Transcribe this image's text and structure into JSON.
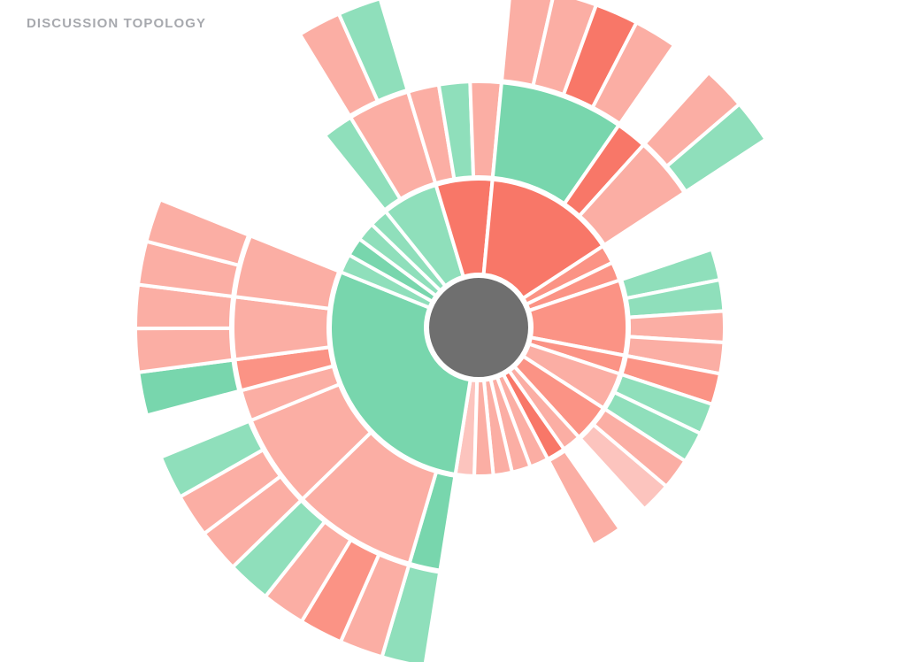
{
  "title": "DISCUSSION TOPOLOGY",
  "colors": {
    "root": "#6f6f6f",
    "positive_dark": "#78d6ad",
    "positive": "#8fdfbb",
    "negative_dark": "#f87768",
    "negative": "#fb9385",
    "negative_light": "#fbaea4",
    "negative_pale": "#fcc4be",
    "separator": "#ffffff"
  },
  "chart_data": {
    "type": "sunburst",
    "root": {
      "name": "",
      "children": [
        {
          "sentiment": "negative_pale",
          "children": []
        },
        {
          "sentiment": "positive_dark",
          "children": [
            {
              "sentiment": "positive_dark",
              "children": [
                {
                  "sentiment": "positive",
                  "children": []
                }
              ]
            },
            {
              "sentiment": "negative_light",
              "children": [
                {
                  "sentiment": "negative_light",
                  "children": []
                },
                {
                  "sentiment": "negative",
                  "children": []
                },
                {
                  "sentiment": "negative_light",
                  "children": []
                },
                {
                  "sentiment": "positive",
                  "children": []
                }
              ]
            },
            {
              "sentiment": "negative_light",
              "children": [
                {
                  "sentiment": "negative_light",
                  "children": []
                },
                {
                  "sentiment": "negative_light",
                  "children": []
                },
                {
                  "sentiment": "positive",
                  "children": []
                }
              ]
            },
            {
              "sentiment": "negative_light",
              "children": []
            },
            {
              "sentiment": "negative",
              "children": [
                {
                  "sentiment": "positive_dark",
                  "children": []
                }
              ]
            },
            {
              "sentiment": "negative_light",
              "children": [
                {
                  "sentiment": "negative_light",
                  "children": []
                },
                {
                  "sentiment": "negative_light",
                  "children": []
                }
              ]
            },
            {
              "sentiment": "negative_light",
              "children": [
                {
                  "sentiment": "negative_light",
                  "children": []
                },
                {
                  "sentiment": "negative_light",
                  "children": []
                }
              ]
            }
          ]
        },
        {
          "sentiment": "positive",
          "children": []
        },
        {
          "sentiment": "positive_dark",
          "children": []
        },
        {
          "sentiment": "positive",
          "children": []
        },
        {
          "sentiment": "positive",
          "children": []
        },
        {
          "sentiment": "positive",
          "children": [
            {
              "sentiment": "positive",
              "children": []
            },
            {
              "sentiment": "negative_light",
              "children": [
                {
                  "sentiment": "negative_light",
                  "children": []
                },
                {
                  "sentiment": "positive",
                  "children": []
                }
              ]
            }
          ]
        },
        {
          "sentiment": "negative_dark",
          "children": [
            {
              "sentiment": "negative_light",
              "children": []
            },
            {
              "sentiment": "positive",
              "children": []
            },
            {
              "sentiment": "negative_light",
              "children": []
            }
          ]
        },
        {
          "sentiment": "negative_dark",
          "children": [
            {
              "sentiment": "positive_dark",
              "children": [
                {
                  "sentiment": "negative_light",
                  "children": []
                },
                {
                  "sentiment": "negative_light",
                  "children": []
                },
                {
                  "sentiment": "negative_dark",
                  "children": []
                },
                {
                  "sentiment": "negative_light",
                  "children": []
                }
              ]
            },
            {
              "sentiment": "negative_dark",
              "children": []
            },
            {
              "sentiment": "negative_light",
              "children": [
                {
                  "sentiment": "negative_light",
                  "children": []
                },
                {
                  "sentiment": "positive",
                  "children": []
                }
              ]
            }
          ]
        },
        {
          "sentiment": "negative",
          "children": []
        },
        {
          "sentiment": "negative",
          "children": []
        },
        {
          "sentiment": "negative",
          "children": [
            {
              "sentiment": "positive",
              "children": []
            },
            {
              "sentiment": "positive",
              "children": []
            },
            {
              "sentiment": "negative_light",
              "children": []
            },
            {
              "sentiment": "negative_light",
              "children": []
            }
          ]
        },
        {
          "sentiment": "negative",
          "children": [
            {
              "sentiment": "negative",
              "children": []
            }
          ]
        },
        {
          "sentiment": "negative_light",
          "children": [
            {
              "sentiment": "positive",
              "children": []
            },
            {
              "sentiment": "positive",
              "children": []
            }
          ]
        },
        {
          "sentiment": "negative",
          "children": [
            {
              "sentiment": "negative_light",
              "children": []
            },
            {
              "sentiment": "negative_pale",
              "children": []
            }
          ]
        },
        {
          "sentiment": "negative_light",
          "children": []
        },
        {
          "sentiment": "negative_dark",
          "children": [
            {
              "sentiment": "negative_light",
              "children": []
            }
          ]
        },
        {
          "sentiment": "negative_light",
          "children": []
        },
        {
          "sentiment": "negative_light",
          "children": []
        },
        {
          "sentiment": "negative_light",
          "children": []
        },
        {
          "sentiment": "negative_light",
          "children": []
        }
      ]
    }
  }
}
